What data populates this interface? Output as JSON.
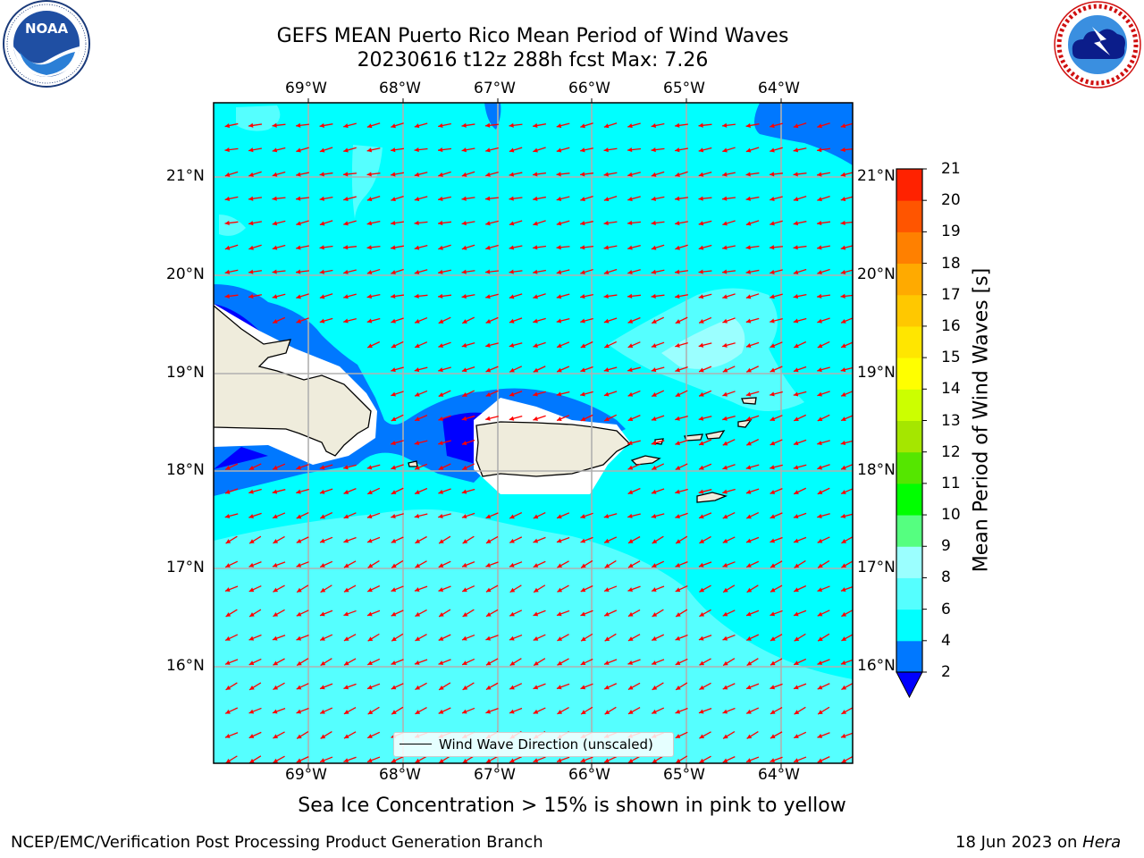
{
  "header": {
    "title_line1": "GEFS MEAN Puerto Rico Mean Period of Wind Waves",
    "title_line2": "20230616 t12z 288h fcst   Max: 7.26"
  },
  "logos": {
    "left": {
      "name": "noaa-logo",
      "text": "NOAA",
      "ring_text": "NATIONAL OCEANIC AND ATMOSPHERIC ADMINISTRATION · U.S. DEPARTMENT OF COMMERCE"
    },
    "right": {
      "name": "nws-logo",
      "ring_text": "NATIONAL WEATHER SERVICE"
    }
  },
  "map": {
    "lon_labels": [
      "69°W",
      "68°W",
      "67°W",
      "66°W",
      "65°W",
      "64°W"
    ],
    "lat_labels": [
      "21°N",
      "20°N",
      "19°N",
      "18°N",
      "17°N",
      "16°N"
    ],
    "extent": {
      "lon_min": -70.0,
      "lon_max": -63.3,
      "lat_min": 15.0,
      "lat_max": 21.75
    },
    "land_color": "#efecdc",
    "ocean_base_color": "#00ffff",
    "arrow_color": "#ff0000",
    "legend_label": "Wind Wave Direction (unscaled)"
  },
  "colorbar": {
    "title": "Mean Period of Wind Waves [s]",
    "levels": [
      "2",
      "4",
      "6",
      "8",
      "9",
      "10",
      "11",
      "12",
      "13",
      "14",
      "15",
      "16",
      "17",
      "18",
      "19",
      "20",
      "21"
    ],
    "colors": [
      "#0078ff",
      "#00ffff",
      "#55ffff",
      "#9bffff",
      "#55ff80",
      "#00ff00",
      "#55e600",
      "#a5e600",
      "#ccff00",
      "#ffff00",
      "#ffe600",
      "#ffc800",
      "#ffaa00",
      "#ff8000",
      "#ff5500",
      "#ff2200"
    ],
    "under_color": "#0000ff"
  },
  "footer": {
    "sea_ice_note": "Sea Ice Concentration > 15% is shown in pink to yellow",
    "left": "NCEP/EMC/Verification Post Processing Product Generation Branch",
    "date": "18 Jun 2023 on ",
    "host": "Hera"
  }
}
